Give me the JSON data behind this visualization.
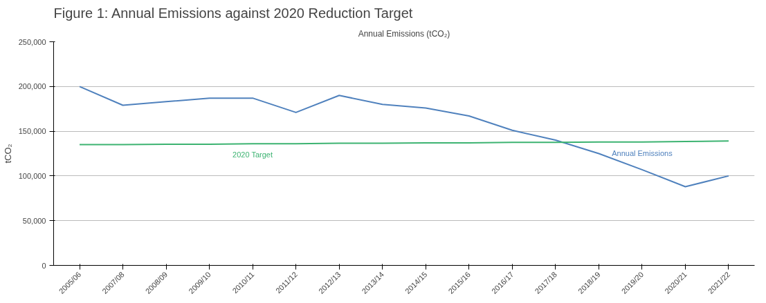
{
  "chart_data": {
    "type": "line",
    "title": "Figure 1: Annual Emissions against 2020 Reduction Target",
    "subtitle": "Annual Emissions (tCO₂)",
    "ylabel": "tCO₂",
    "categories": [
      "2005/06",
      "2007/08",
      "2008/09",
      "2009/10",
      "2010/11",
      "2011/12",
      "2012/13",
      "2013/14",
      "2014/15",
      "2015/16",
      "2016/17",
      "2017/18",
      "2018/19",
      "2019/20",
      "2020/21",
      "2021/22"
    ],
    "series": [
      {
        "name": "Annual Emissions",
        "color": "#4f81bd",
        "values": [
          200000,
          179000,
          183000,
          187000,
          187000,
          171000,
          190000,
          180000,
          176000,
          167000,
          151000,
          140000,
          125000,
          107000,
          88000,
          100000
        ]
      },
      {
        "name": "2020 Target",
        "color": "#3cb371",
        "values": [
          135000,
          135000,
          135500,
          135500,
          136000,
          136000,
          136500,
          136500,
          137000,
          137000,
          137500,
          137500,
          138000,
          138000,
          138500,
          139000
        ]
      }
    ],
    "ylim": [
      0,
      250000
    ],
    "yticks": [
      {
        "value": 0,
        "label": "0"
      },
      {
        "value": 50000,
        "label": "50,000"
      },
      {
        "value": 100000,
        "label": "100,000"
      },
      {
        "value": 150000,
        "label": "150,000"
      },
      {
        "value": 200000,
        "label": "200,000"
      },
      {
        "value": 250000,
        "label": "250,000"
      }
    ],
    "grid": "y",
    "marker": "none",
    "line_style": "solid"
  }
}
